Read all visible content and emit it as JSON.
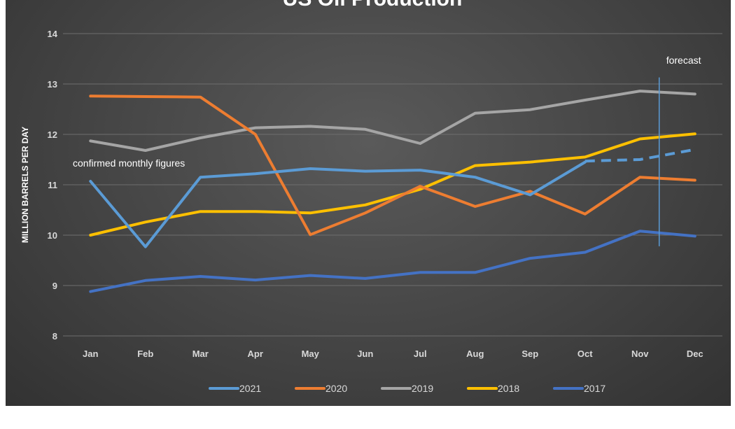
{
  "chart_data": {
    "type": "line",
    "title": "US Oil Production",
    "xlabel": "",
    "ylabel": "MILLION BARRELS PER DAY",
    "ylim": [
      8,
      14
    ],
    "yticks": [
      "8",
      "9",
      "10",
      "11",
      "12",
      "13",
      "14"
    ],
    "categories": [
      "Jan",
      "Feb",
      "Mar",
      "Apr",
      "May",
      "Jun",
      "Jul",
      "Aug",
      "Sep",
      "Oct",
      "Nov",
      "Dec"
    ],
    "grid": true,
    "legend_position": "bottom",
    "series": [
      {
        "name": "2021",
        "color": "#5b9bd5",
        "values": [
          11.07,
          9.77,
          11.15,
          11.22,
          11.32,
          11.27,
          11.29,
          11.15,
          10.8,
          11.45,
          null,
          null
        ],
        "forecast": [
          null,
          null,
          null,
          null,
          null,
          null,
          null,
          null,
          null,
          11.47,
          11.5,
          11.7
        ]
      },
      {
        "name": "2020",
        "color": "#ed7d31",
        "values": [
          12.76,
          12.75,
          12.74,
          12.0,
          10.01,
          10.44,
          10.97,
          10.57,
          10.87,
          10.42,
          11.15,
          11.09
        ]
      },
      {
        "name": "2019",
        "color": "#a5a5a5",
        "values": [
          11.87,
          11.68,
          11.93,
          12.13,
          12.16,
          12.1,
          11.82,
          12.42,
          12.49,
          12.68,
          12.86,
          12.8
        ]
      },
      {
        "name": "2018",
        "color": "#ffc000",
        "values": [
          10.0,
          10.26,
          10.47,
          10.47,
          10.44,
          10.6,
          10.91,
          11.38,
          11.45,
          11.55,
          11.91,
          12.01
        ]
      },
      {
        "name": "2017",
        "color": "#4472c4",
        "values": [
          8.88,
          9.1,
          9.18,
          9.11,
          9.2,
          9.14,
          9.26,
          9.26,
          9.54,
          9.66,
          10.08,
          9.98
        ]
      }
    ],
    "annotations": {
      "confirmed": "confirmed monthly figures",
      "forecast": "forecast",
      "forecast_line_x": 10.35,
      "forecast_line_range": [
        9.78,
        13.13
      ]
    }
  }
}
